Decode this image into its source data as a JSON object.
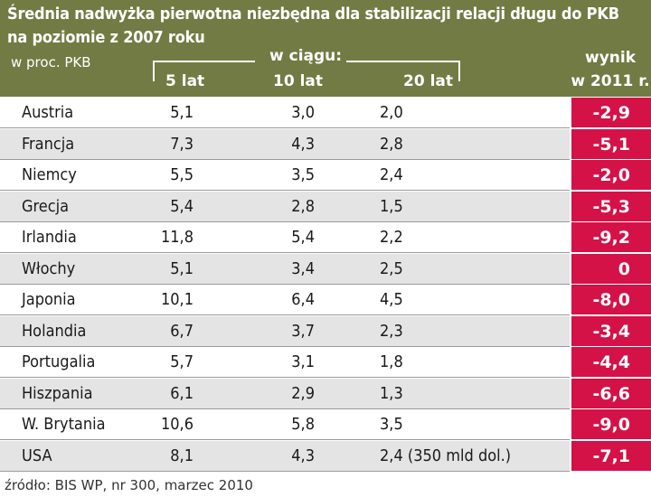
{
  "chart_data": {
    "type": "table",
    "title": "Średnia nadwyżka pierwotna niezbędna dla stabilizacji relacji długu do PKB",
    "subtitle": "na poziomie z 2007 roku",
    "unit": "w proc. PKB",
    "group_label": "w ciągu:",
    "columns": [
      "5 lat",
      "10 lat",
      "20 lat"
    ],
    "result_header": [
      "wynik",
      "w 2011 r."
    ],
    "rows": [
      {
        "country": "Austria",
        "y5": "5,1",
        "y10": "3,0",
        "y20": "2,0",
        "result": "-2,9"
      },
      {
        "country": "Francja",
        "y5": "7,3",
        "y10": "4,3",
        "y20": "2,8",
        "result": "-5,1"
      },
      {
        "country": "Niemcy",
        "y5": "5,5",
        "y10": "3,5",
        "y20": "2,4",
        "result": "-2,0"
      },
      {
        "country": "Grecja",
        "y5": "5,4",
        "y10": "2,8",
        "y20": "1,5",
        "result": "-5,3"
      },
      {
        "country": "Irlandia",
        "y5": "11,8",
        "y10": "5,4",
        "y20": "2,2",
        "result": "-9,2"
      },
      {
        "country": "Włochy",
        "y5": "5,1",
        "y10": "3,4",
        "y20": "2,5",
        "result": "0"
      },
      {
        "country": "Japonia",
        "y5": "10,1",
        "y10": "6,4",
        "y20": "4,5",
        "result": "-8,0"
      },
      {
        "country": "Holandia",
        "y5": "6,7",
        "y10": "3,7",
        "y20": "2,3",
        "result": "-3,4"
      },
      {
        "country": "Portugalia",
        "y5": "5,7",
        "y10": "3,1",
        "y20": "1,8",
        "result": "-4,4"
      },
      {
        "country": "Hiszpania",
        "y5": "6,1",
        "y10": "2,9",
        "y20": "1,3",
        "result": "-6,6"
      },
      {
        "country": "W. Brytania",
        "y5": "10,6",
        "y10": "5,8",
        "y20": "3,5",
        "result": "-9,0"
      },
      {
        "country": "USA",
        "y5": "8,1",
        "y10": "4,3",
        "y20": "2,4 (350 mld dol.)",
        "result": "-7,1"
      }
    ],
    "source": "źródło: BIS WP, nr 300, marzec 2010",
    "colors": {
      "header_bg": "#727b43",
      "result_bg": "#d41247",
      "stripe": "#e4e4e4"
    }
  }
}
